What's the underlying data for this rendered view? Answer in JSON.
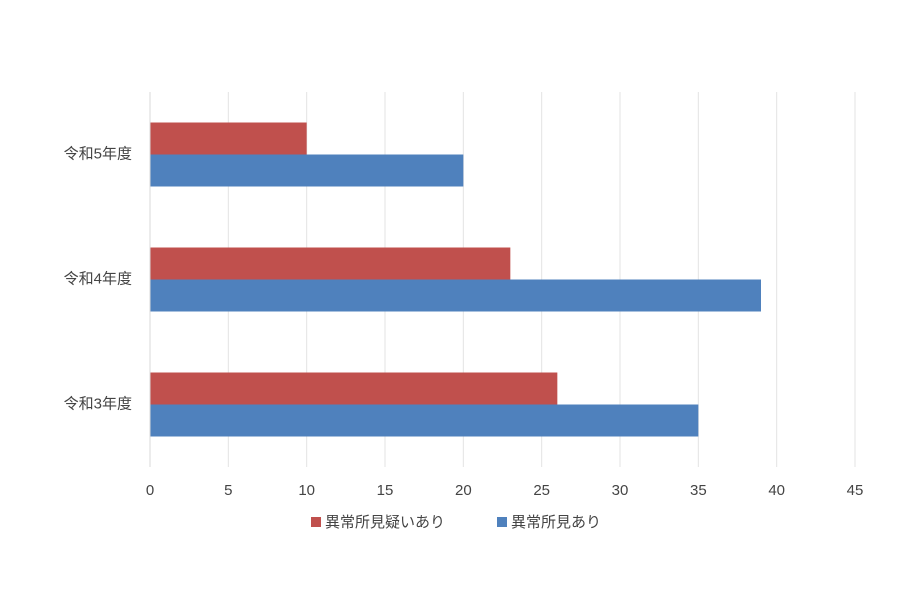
{
  "chart_data": {
    "type": "hbar",
    "categories": [
      "令和5年度",
      "令和4年度",
      "令和3年度"
    ],
    "series": [
      {
        "name": "異常所見疑いあり",
        "color": "#c0504d",
        "values": [
          10,
          23,
          26
        ]
      },
      {
        "name": "異常所見あり",
        "color": "#4f81bd",
        "values": [
          20,
          39,
          35
        ]
      }
    ],
    "xlim": [
      0,
      45
    ],
    "xticks": [
      0,
      5,
      10,
      15,
      20,
      25,
      30,
      35,
      40,
      45
    ],
    "grid": true,
    "legend": "bottom"
  }
}
